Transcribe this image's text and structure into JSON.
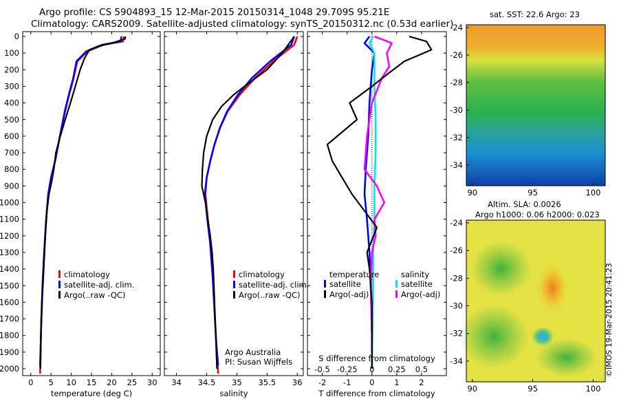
{
  "header": {
    "line1": "Argo profile: CS 5904893_15 12-Mar-2015 20150314_1048 29.709S 95.21E",
    "line2": "Climatology: CARS2009. Satellite-adjusted climatology: synTS_20150312.nc (0.53d earlier)"
  },
  "depth_ticks": [
    "0",
    "100",
    "200",
    "300",
    "400",
    "500",
    "600",
    "700",
    "800",
    "900",
    "1000",
    "1100",
    "1200",
    "1300",
    "1400",
    "1500",
    "1600",
    "1700",
    "1800",
    "1900",
    "2000"
  ],
  "chart_data": [
    {
      "type": "line",
      "xlabel": "temperature (deg C)",
      "x_ticks": [
        "0",
        "5",
        "10",
        "15",
        "20",
        "25",
        "30"
      ],
      "xlim": [
        -2,
        32
      ],
      "ylim": [
        2080,
        0
      ],
      "legend": [
        "climatology",
        "satellite-adj. clim.",
        "Argo(..raw -QC)"
      ],
      "legend_colors": [
        "#ff0000",
        "#0000ff",
        "#000000"
      ],
      "series": [
        {
          "name": "climatology",
          "color": "#ff0000",
          "points": [
            [
              23.0,
              0
            ],
            [
              22.8,
              30
            ],
            [
              18,
              50
            ],
            [
              14,
              90
            ],
            [
              11.5,
              150
            ],
            [
              10.6,
              250
            ],
            [
              9.5,
              350
            ],
            [
              8.5,
              450
            ],
            [
              7.2,
              600
            ],
            [
              6.0,
              750
            ],
            [
              5.0,
              850
            ],
            [
              4.3,
              950
            ],
            [
              3.8,
              1100
            ],
            [
              3.3,
              1300
            ],
            [
              2.9,
              1500
            ],
            [
              2.6,
              1700
            ],
            [
              2.4,
              1900
            ],
            [
              2.3,
              2030
            ]
          ]
        },
        {
          "name": "satellite-adj. clim.",
          "color": "#0000ff",
          "points": [
            [
              22.4,
              0
            ],
            [
              22.2,
              30
            ],
            [
              17.6,
              50
            ],
            [
              13.7,
              90
            ],
            [
              11.3,
              150
            ],
            [
              10.5,
              250
            ],
            [
              9.4,
              350
            ],
            [
              8.4,
              450
            ],
            [
              7.2,
              600
            ],
            [
              6.0,
              750
            ],
            [
              5.0,
              850
            ],
            [
              4.3,
              950
            ],
            [
              3.8,
              1100
            ],
            [
              3.3,
              1300
            ],
            [
              2.9,
              1500
            ],
            [
              2.6,
              1700
            ],
            [
              2.4,
              1900
            ],
            [
              2.3,
              1980
            ]
          ]
        },
        {
          "name": "Argo(..raw -QC)",
          "color": "#000000",
          "points": [
            [
              23.4,
              0
            ],
            [
              23.3,
              15
            ],
            [
              20,
              40
            ],
            [
              16.5,
              60
            ],
            [
              14.5,
              80
            ],
            [
              13.3,
              130
            ],
            [
              12.2,
              200
            ],
            [
              11.0,
              300
            ],
            [
              9.8,
              400
            ],
            [
              8.5,
              500
            ],
            [
              7.3,
              600
            ],
            [
              6.2,
              700
            ],
            [
              5.7,
              800
            ],
            [
              5.1,
              880
            ],
            [
              4.5,
              950
            ],
            [
              4.0,
              1050
            ],
            [
              3.6,
              1200
            ],
            [
              3.2,
              1400
            ],
            [
              2.8,
              1600
            ],
            [
              2.5,
              1800
            ],
            [
              2.4,
              2000
            ]
          ]
        }
      ]
    },
    {
      "type": "line",
      "xlabel": "salinity",
      "x_ticks": [
        "34",
        "34.5",
        "35",
        "35.5",
        "36"
      ],
      "xlim": [
        33.8,
        36.1
      ],
      "ylim": [
        2080,
        0
      ],
      "legend": [
        "climatology",
        "satellite-adj. clim.",
        "Argo(..raw -QC)"
      ],
      "legend_colors": [
        "#ff0000",
        "#0000ff",
        "#000000"
      ],
      "annotation": [
        "Argo Australia",
        "PI: Susan Wijffels"
      ],
      "series": [
        {
          "name": "climatology",
          "color": "#ff0000",
          "points": [
            [
              36.0,
              0
            ],
            [
              35.95,
              50
            ],
            [
              35.6,
              150
            ],
            [
              35.3,
              250
            ],
            [
              35.05,
              350
            ],
            [
              34.85,
              450
            ],
            [
              34.72,
              550
            ],
            [
              34.63,
              650
            ],
            [
              34.56,
              750
            ],
            [
              34.5,
              850
            ],
            [
              34.48,
              950
            ],
            [
              34.52,
              1100
            ],
            [
              34.56,
              1250
            ],
            [
              34.6,
              1450
            ],
            [
              34.63,
              1650
            ],
            [
              34.66,
              1850
            ],
            [
              34.69,
              2030
            ]
          ]
        },
        {
          "name": "satellite-adj. clim.",
          "color": "#0000ff",
          "points": [
            [
              35.95,
              0
            ],
            [
              35.9,
              50
            ],
            [
              35.55,
              150
            ],
            [
              35.25,
              250
            ],
            [
              35.02,
              350
            ],
            [
              34.84,
              450
            ],
            [
              34.72,
              550
            ],
            [
              34.63,
              650
            ],
            [
              34.56,
              750
            ],
            [
              34.5,
              850
            ],
            [
              34.47,
              950
            ],
            [
              34.51,
              1100
            ],
            [
              34.56,
              1250
            ],
            [
              34.6,
              1450
            ],
            [
              34.63,
              1650
            ],
            [
              34.66,
              1850
            ],
            [
              34.69,
              1980
            ]
          ]
        },
        {
          "name": "Argo(..raw -QC)",
          "color": "#000000",
          "points": [
            [
              35.95,
              0
            ],
            [
              35.85,
              50
            ],
            [
              35.75,
              100
            ],
            [
              35.5,
              200
            ],
            [
              35.2,
              280
            ],
            [
              34.95,
              350
            ],
            [
              34.75,
              420
            ],
            [
              34.6,
              500
            ],
            [
              34.5,
              600
            ],
            [
              34.45,
              700
            ],
            [
              34.43,
              800
            ],
            [
              34.42,
              900
            ],
            [
              34.48,
              1000
            ],
            [
              34.52,
              1100
            ],
            [
              34.56,
              1200
            ],
            [
              34.59,
              1300
            ],
            [
              34.61,
              1400
            ],
            [
              34.63,
              1600
            ],
            [
              34.65,
              1800
            ],
            [
              34.67,
              2000
            ]
          ]
        }
      ]
    },
    {
      "type": "line",
      "xlabel": "T difference from climatology",
      "secondary_xlabel": "S difference from climatology",
      "x_ticks": [
        "-2",
        "-1",
        "0",
        "1",
        "2"
      ],
      "secondary_x_ticks": [
        "-0.5",
        "-0.25",
        "0",
        "0.25",
        "0.5"
      ],
      "xlim": [
        -2.6,
        3.0
      ],
      "ylim": [
        2080,
        0
      ],
      "legend_headers": [
        "temperature",
        "salinity"
      ],
      "legend": [
        "satellite",
        "Argo(-adj)",
        "satellite",
        "Argo(-adj)"
      ],
      "legend_colors": [
        "#0000ff",
        "#000000",
        "#00e5ee",
        "#ff00ff"
      ],
      "series": [
        {
          "name": "satellite",
          "group": "temperature",
          "color": "#0000ff",
          "points": [
            [
              -0.1,
              0
            ],
            [
              -0.3,
              40
            ],
            [
              0.1,
              100
            ],
            [
              0,
              200
            ],
            [
              -0.1,
              400
            ],
            [
              -0.15,
              600
            ],
            [
              -0.25,
              800
            ],
            [
              -0.3,
              950
            ],
            [
              -0.2,
              1100
            ],
            [
              -0.1,
              1300
            ],
            [
              -0.05,
              1500
            ],
            [
              0,
              1800
            ],
            [
              0,
              2000
            ]
          ]
        },
        {
          "name": "satellite",
          "group": "salinity",
          "color": "#00e5ee",
          "points": [
            [
              0.05,
              0
            ],
            [
              -0.1,
              40
            ],
            [
              0.1,
              100
            ],
            [
              0.1,
              300
            ],
            [
              0.15,
              500
            ],
            [
              0.15,
              700
            ],
            [
              0.1,
              900
            ],
            [
              0.1,
              1100
            ],
            [
              0.05,
              1300
            ],
            [
              0.05,
              1500
            ],
            [
              0.02,
              1800
            ],
            [
              0,
              2000
            ]
          ]
        },
        {
          "name": "Argo(-adj)",
          "group": "salinity",
          "color": "#ff00ff",
          "points": [
            [
              0.1,
              0
            ],
            [
              0.8,
              40
            ],
            [
              0.6,
              100
            ],
            [
              0.7,
              180
            ],
            [
              0.4,
              250
            ],
            [
              0,
              400
            ],
            [
              -0.2,
              600
            ],
            [
              -0.3,
              800
            ],
            [
              0.2,
              900
            ],
            [
              0.5,
              1000
            ],
            [
              0.1,
              1100
            ],
            [
              0.15,
              1200
            ],
            [
              0,
              1300
            ],
            [
              -0.05,
              1500
            ],
            [
              0,
              1800
            ]
          ]
        },
        {
          "name": "Argo(-adj)",
          "group": "temperature",
          "color": "#000000",
          "points": [
            [
              1.5,
              0
            ],
            [
              2.2,
              30
            ],
            [
              2.4,
              80
            ],
            [
              1.3,
              150
            ],
            [
              0.6,
              230
            ],
            [
              0,
              300
            ],
            [
              -0.9,
              400
            ],
            [
              -0.6,
              500
            ],
            [
              -1.8,
              650
            ],
            [
              -1.6,
              750
            ],
            [
              -1.2,
              850
            ],
            [
              -0.8,
              950
            ],
            [
              -0.3,
              1050
            ],
            [
              0.2,
              1150
            ],
            [
              -0.2,
              1300
            ],
            [
              -0.1,
              1400
            ],
            [
              0,
              1600
            ],
            [
              0,
              1800
            ],
            [
              0,
              2000
            ]
          ]
        }
      ]
    },
    {
      "type": "heatmap",
      "title": "sat. SST: 22.6 Argo: 23",
      "x_ticks": [
        "90",
        "95",
        "100"
      ],
      "y_ticks": [
        "-24",
        "-26",
        "-28",
        "-30",
        "-32",
        "-34"
      ],
      "xlim": [
        89.5,
        101
      ],
      "ylim": [
        -35.5,
        -23.8
      ]
    },
    {
      "type": "heatmap",
      "title_lines": [
        "Altim. SLA: 0.0026",
        "Argo h1000: 0.06 h2000: 0.023"
      ],
      "x_ticks": [
        "90",
        "95",
        "100"
      ],
      "y_ticks": [
        "-24",
        "-26",
        "-28",
        "-30",
        "-32",
        "-34"
      ],
      "xlim": [
        89.5,
        101
      ],
      "ylim": [
        -35.5,
        -23.8
      ]
    }
  ],
  "credit": "©IMOS 19-Mar-2015 20:41:23"
}
